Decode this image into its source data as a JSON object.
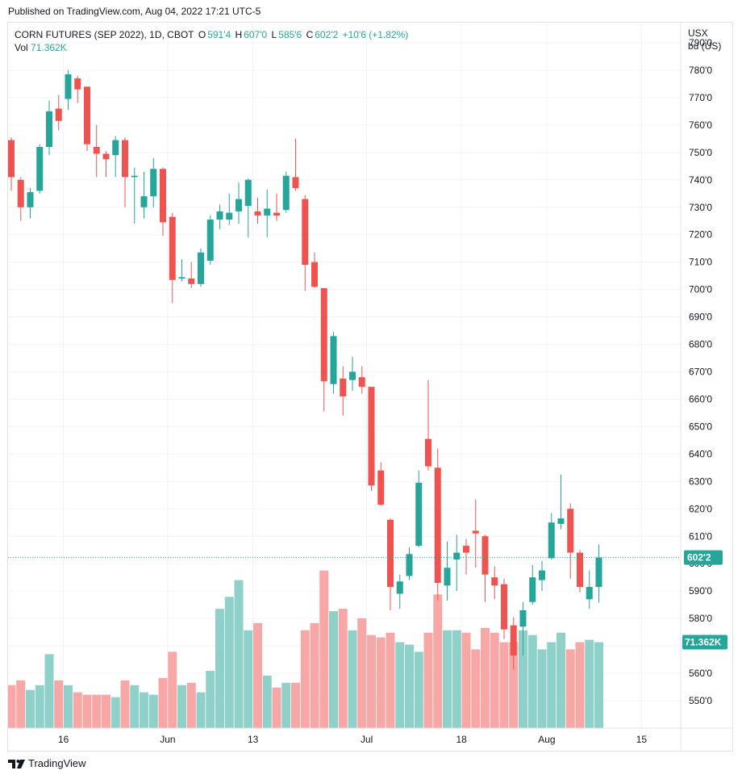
{
  "header": {
    "published": "Published on TradingView.com, Aug 04, 2022 17:21 UTC-5"
  },
  "legend": {
    "symbol": "CORN FUTURES (SEP 2022), 1D, CBOT",
    "o_label": "O",
    "o_value": "591'4",
    "h_label": "H",
    "h_value": "607'0",
    "l_label": "L",
    "l_value": "585'6",
    "c_label": "C",
    "c_value": "602'2",
    "change": "+10'6 (+1.82%)",
    "vol_label": "Vol",
    "vol_value": "71.362K"
  },
  "axis": {
    "currency": "USX",
    "unit": "bu (US)"
  },
  "badges": {
    "last_price": "602'2",
    "last_volume": "71.362K"
  },
  "footer": {
    "brand": "TradingView"
  },
  "colors": {
    "up": "#26a69a",
    "down": "#ef5350",
    "vol_up": "#8fd1c9",
    "vol_down": "#f7a8a6",
    "grid": "#f0f3fa"
  },
  "chart_data": {
    "type": "candlestick",
    "title": "CORN FUTURES (SEP 2022), 1D, CBOT",
    "ylabel": "USX bu (US)",
    "ylim": [
      542,
      796
    ],
    "y_ticks": [
      "550'0",
      "560'0",
      "570'0",
      "580'0",
      "590'0",
      "600'0",
      "610'0",
      "620'0",
      "630'0",
      "640'0",
      "650'0",
      "660'0",
      "670'0",
      "680'0",
      "690'0",
      "700'0",
      "710'0",
      "720'0",
      "730'0",
      "740'0",
      "750'0",
      "760'0",
      "770'0",
      "780'0",
      "790'0"
    ],
    "x_ticks": [
      "16",
      "Jun",
      "13",
      "Jul",
      "18",
      "Aug",
      "15"
    ],
    "x_tick_index": [
      5.5,
      16.5,
      25.5,
      37.5,
      47.5,
      56.5,
      66.5
    ],
    "last_price": 602.25,
    "candles": [
      {
        "o": 754.5,
        "h": 755.5,
        "l": 736,
        "c": 741
      },
      {
        "o": 740,
        "h": 741,
        "l": 725,
        "c": 730
      },
      {
        "o": 730,
        "h": 737,
        "l": 726,
        "c": 735.5
      },
      {
        "o": 736,
        "h": 753,
        "l": 735,
        "c": 752
      },
      {
        "o": 752,
        "h": 769,
        "l": 749,
        "c": 765
      },
      {
        "o": 766,
        "h": 771,
        "l": 758,
        "c": 761.5
      },
      {
        "o": 769.5,
        "h": 780,
        "l": 765.5,
        "c": 778.5
      },
      {
        "o": 777,
        "h": 778,
        "l": 768,
        "c": 773
      },
      {
        "o": 774,
        "h": 774,
        "l": 750.5,
        "c": 753
      },
      {
        "o": 752,
        "h": 760,
        "l": 741,
        "c": 749.5
      },
      {
        "o": 749.5,
        "h": 750.5,
        "l": 741,
        "c": 747.5
      },
      {
        "o": 749,
        "h": 756,
        "l": 741,
        "c": 754.5
      },
      {
        "o": 754.5,
        "h": 755.5,
        "l": 730,
        "c": 741
      },
      {
        "o": 741,
        "h": 744.5,
        "l": 724,
        "c": 741.5
      },
      {
        "o": 730,
        "h": 743,
        "l": 726,
        "c": 734
      },
      {
        "o": 734,
        "h": 748,
        "l": 730,
        "c": 744
      },
      {
        "o": 744,
        "h": 744.5,
        "l": 719.5,
        "c": 724.5
      },
      {
        "o": 726.5,
        "h": 728,
        "l": 695,
        "c": 703.5
      },
      {
        "o": 704,
        "h": 711,
        "l": 703,
        "c": 704.5
      },
      {
        "o": 704,
        "h": 710,
        "l": 700.5,
        "c": 702
      },
      {
        "o": 702,
        "h": 715,
        "l": 701,
        "c": 713.5
      },
      {
        "o": 710.5,
        "h": 727,
        "l": 709,
        "c": 725.5
      },
      {
        "o": 725.5,
        "h": 731,
        "l": 722,
        "c": 728.5
      },
      {
        "o": 725.5,
        "h": 735,
        "l": 723.5,
        "c": 728
      },
      {
        "o": 728.5,
        "h": 739,
        "l": 724,
        "c": 733
      },
      {
        "o": 730.5,
        "h": 740.5,
        "l": 719,
        "c": 740
      },
      {
        "o": 728.5,
        "h": 733.5,
        "l": 724,
        "c": 727
      },
      {
        "o": 727,
        "h": 736.5,
        "l": 719,
        "c": 729.5
      },
      {
        "o": 728,
        "h": 735,
        "l": 725,
        "c": 727
      },
      {
        "o": 729,
        "h": 743,
        "l": 728,
        "c": 741.5
      },
      {
        "o": 741,
        "h": 755,
        "l": 736,
        "c": 737
      },
      {
        "o": 733,
        "h": 734.5,
        "l": 699.5,
        "c": 709
      },
      {
        "o": 710,
        "h": 713.5,
        "l": 700.5,
        "c": 701
      },
      {
        "o": 700.5,
        "h": 700.5,
        "l": 655.5,
        "c": 666.5
      },
      {
        "o": 665.5,
        "h": 684.5,
        "l": 662,
        "c": 683
      },
      {
        "o": 667.5,
        "h": 672,
        "l": 654,
        "c": 661
      },
      {
        "o": 667,
        "h": 675.5,
        "l": 663,
        "c": 670
      },
      {
        "o": 668,
        "h": 672,
        "l": 662,
        "c": 664.5
      },
      {
        "o": 664.5,
        "h": 664.5,
        "l": 626.5,
        "c": 628.5
      },
      {
        "o": 634,
        "h": 637,
        "l": 621,
        "c": 621.5
      },
      {
        "o": 616,
        "h": 616.5,
        "l": 583,
        "c": 591.5
      },
      {
        "o": 589,
        "h": 596,
        "l": 583.5,
        "c": 593.5
      },
      {
        "o": 595.5,
        "h": 606,
        "l": 594,
        "c": 603.5
      },
      {
        "o": 606.5,
        "h": 634,
        "l": 606,
        "c": 629.5
      },
      {
        "o": 645.5,
        "h": 667,
        "l": 634,
        "c": 635.5
      },
      {
        "o": 635,
        "h": 642,
        "l": 586.5,
        "c": 593
      },
      {
        "o": 592,
        "h": 608,
        "l": 586.5,
        "c": 598.5
      },
      {
        "o": 601.5,
        "h": 610.5,
        "l": 590,
        "c": 604
      },
      {
        "o": 606.5,
        "h": 609,
        "l": 596,
        "c": 604
      },
      {
        "o": 612,
        "h": 623.5,
        "l": 598.5,
        "c": 611
      },
      {
        "o": 610,
        "h": 610.5,
        "l": 586,
        "c": 596
      },
      {
        "o": 595,
        "h": 599,
        "l": 587,
        "c": 592
      },
      {
        "o": 592.5,
        "h": 594.5,
        "l": 572.5,
        "c": 576
      },
      {
        "o": 577.5,
        "h": 580.5,
        "l": 561.5,
        "c": 566.5
      },
      {
        "o": 577,
        "h": 586,
        "l": 566.5,
        "c": 583
      },
      {
        "o": 586,
        "h": 599.5,
        "l": 585,
        "c": 595
      },
      {
        "o": 594,
        "h": 601,
        "l": 590,
        "c": 597.5
      },
      {
        "o": 602,
        "h": 618.5,
        "l": 601.5,
        "c": 615
      },
      {
        "o": 614.5,
        "h": 632.5,
        "l": 612.5,
        "c": 616.5
      },
      {
        "o": 620,
        "h": 622,
        "l": 594.5,
        "c": 604
      },
      {
        "o": 604,
        "h": 605,
        "l": 589.5,
        "c": 591.5
      },
      {
        "o": 587,
        "h": 597.5,
        "l": 583.5,
        "c": 591.5
      },
      {
        "o": 591.5,
        "h": 607,
        "l": 585.75,
        "c": 602.25
      }
    ],
    "volume_max": 70,
    "volumes": [
      18,
      20,
      16,
      18,
      31,
      20,
      18,
      15,
      14,
      14,
      14,
      13,
      20,
      18,
      15,
      14,
      21,
      32,
      18,
      19,
      15,
      24,
      50,
      55,
      62,
      41,
      44,
      22,
      17,
      19,
      19,
      41,
      44,
      66,
      49,
      50,
      41,
      46,
      39,
      38,
      40,
      36,
      35,
      32,
      40,
      56,
      41,
      41,
      40,
      33,
      42,
      40,
      36,
      36,
      41,
      39,
      33,
      36,
      40,
      33,
      36,
      37,
      36
    ]
  }
}
